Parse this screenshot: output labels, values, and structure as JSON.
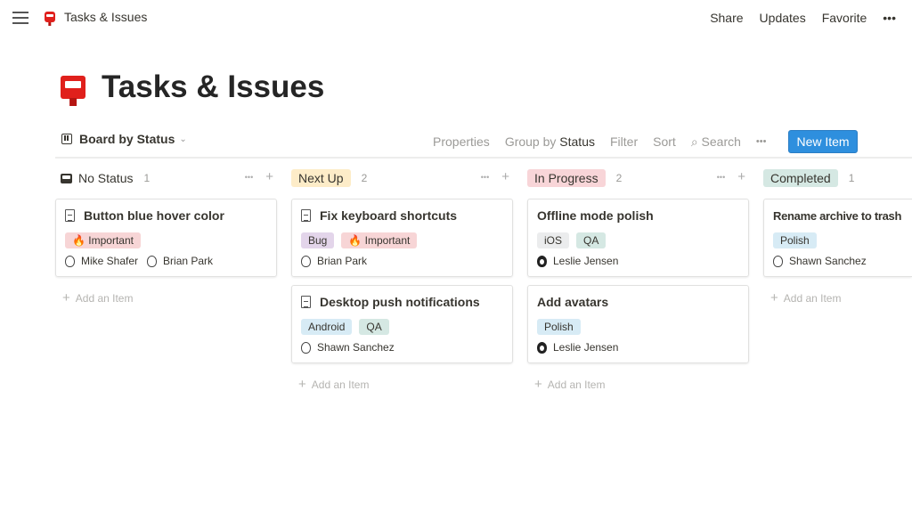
{
  "topbar": {
    "breadcrumb": "Tasks & Issues",
    "share": "Share",
    "updates": "Updates",
    "favorite": "Favorite",
    "more": "•••"
  },
  "page": {
    "title": "Tasks & Issues"
  },
  "toolbar": {
    "view": "Board by Status",
    "properties": "Properties",
    "group_by": "Group by",
    "group_value": "Status",
    "filter": "Filter",
    "sort": "Sort",
    "search": "Search",
    "more": "•••",
    "new_item": "New Item"
  },
  "add_label": "Add an Item",
  "columns": [
    {
      "name": "No Status",
      "count": "1",
      "color": "",
      "cards": [
        {
          "title": "Button blue hover color",
          "doc": true,
          "tags": [
            {
              "label": "🔥 Important",
              "color": "#f7d5d6"
            }
          ],
          "people": [
            {
              "name": "Mike Shafer"
            },
            {
              "name": "Brian Park"
            }
          ]
        }
      ]
    },
    {
      "name": "Next Up",
      "count": "2",
      "color": "#fdecc8",
      "cards": [
        {
          "title": "Fix keyboard shortcuts",
          "doc": true,
          "tags": [
            {
              "label": "Bug",
              "color": "#e3d5ea"
            },
            {
              "label": "🔥 Important",
              "color": "#f7d5d6"
            }
          ],
          "people": [
            {
              "name": "Brian Park"
            }
          ]
        },
        {
          "title": "Desktop push notifications",
          "doc": true,
          "tags": [
            {
              "label": "Android",
              "color": "#d7ebf5"
            },
            {
              "label": "QA",
              "color": "#d5e8e3"
            }
          ],
          "people": [
            {
              "name": "Shawn Sanchez"
            }
          ]
        }
      ]
    },
    {
      "name": "In Progress",
      "count": "2",
      "color": "#f8d5d8",
      "cards": [
        {
          "title": "Offline mode polish",
          "doc": false,
          "tags": [
            {
              "label": "iOS",
              "color": "#ebeced"
            },
            {
              "label": "QA",
              "color": "#d5e8e3"
            }
          ],
          "people": [
            {
              "name": "Leslie Jensen",
              "dark": true
            }
          ]
        },
        {
          "title": "Add avatars",
          "doc": false,
          "tags": [
            {
              "label": "Polish",
              "color": "#d7ebf5"
            }
          ],
          "people": [
            {
              "name": "Leslie Jensen",
              "dark": true
            }
          ]
        }
      ]
    },
    {
      "name": "Completed",
      "count": "1",
      "color": "#d5e8e3",
      "cards": [
        {
          "title": "Rename archive to trash",
          "doc": false,
          "tags": [
            {
              "label": "Polish",
              "color": "#d7ebf5"
            }
          ],
          "people": [
            {
              "name": "Shawn Sanchez"
            }
          ]
        }
      ]
    }
  ]
}
